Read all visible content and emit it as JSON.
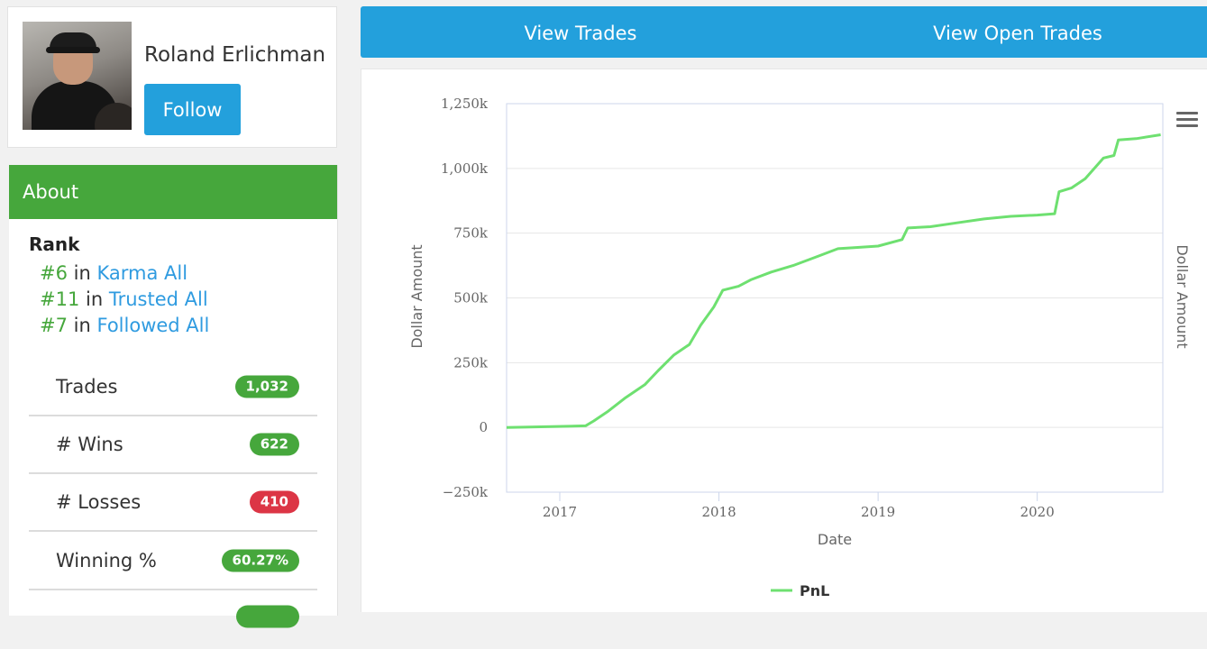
{
  "profile": {
    "name": "Roland Erlichman",
    "follow_label": "Follow"
  },
  "about": {
    "header": "About",
    "rank_title": "Rank",
    "ranks": [
      {
        "num": "#6",
        "in": "in",
        "category": "Karma All"
      },
      {
        "num": "#11",
        "in": "in",
        "category": "Trusted All"
      },
      {
        "num": "#7",
        "in": "in",
        "category": "Followed All"
      }
    ],
    "stats": [
      {
        "label": "Trades",
        "value": "1,032",
        "color": "#46a73c"
      },
      {
        "label": "# Wins",
        "value": "622",
        "color": "#46a73c"
      },
      {
        "label": "# Losses",
        "value": "410",
        "color": "#dc3545"
      },
      {
        "label": "Winning %",
        "value": "60.27%",
        "color": "#46a73c"
      }
    ]
  },
  "nav": {
    "tabs": [
      "View Trades",
      "View Open Trades"
    ]
  },
  "chart_menu_icon": "hamburger-menu-icon",
  "chart_data": {
    "type": "line",
    "xlabel": "Date",
    "ylabel": "Dollar Amount",
    "ylabel_right": "Dollar Amount",
    "ylim": [
      -250000,
      1250000
    ],
    "y_ticks": [
      -250000,
      0,
      250000,
      500000,
      750000,
      1000000,
      1250000
    ],
    "y_tick_labels": [
      "−250k",
      "0",
      "250k",
      "500k",
      "750k",
      "1,000k",
      "1,250k"
    ],
    "xlim": [
      "2016-09-01",
      "2020-10-15"
    ],
    "x_ticks": [
      "2017-01-01",
      "2018-01-01",
      "2019-01-01",
      "2020-01-01"
    ],
    "x_tick_labels": [
      "2017",
      "2018",
      "2019",
      "2020"
    ],
    "grid": true,
    "legend": "bottom-center",
    "series": [
      {
        "name": "PnL",
        "color": "#6ee070",
        "points": [
          [
            "2016-09-01",
            0
          ],
          [
            "2016-12-15",
            3000
          ],
          [
            "2017-03-01",
            6000
          ],
          [
            "2017-03-20",
            25000
          ],
          [
            "2017-04-20",
            60000
          ],
          [
            "2017-06-01",
            115000
          ],
          [
            "2017-07-15",
            165000
          ],
          [
            "2017-08-15",
            220000
          ],
          [
            "2017-09-20",
            280000
          ],
          [
            "2017-10-25",
            320000
          ],
          [
            "2017-11-20",
            395000
          ],
          [
            "2017-12-20",
            465000
          ],
          [
            "2018-01-10",
            530000
          ],
          [
            "2018-02-15",
            545000
          ],
          [
            "2018-03-15",
            570000
          ],
          [
            "2018-05-01",
            600000
          ],
          [
            "2018-06-20",
            625000
          ],
          [
            "2018-08-15",
            660000
          ],
          [
            "2018-10-01",
            690000
          ],
          [
            "2018-11-15",
            695000
          ],
          [
            "2019-01-01",
            700000
          ],
          [
            "2019-02-25",
            725000
          ],
          [
            "2019-03-10",
            770000
          ],
          [
            "2019-05-01",
            775000
          ],
          [
            "2019-07-01",
            790000
          ],
          [
            "2019-09-01",
            805000
          ],
          [
            "2019-11-01",
            815000
          ],
          [
            "2020-01-01",
            820000
          ],
          [
            "2020-02-10",
            825000
          ],
          [
            "2020-02-20",
            910000
          ],
          [
            "2020-03-20",
            925000
          ],
          [
            "2020-04-20",
            960000
          ],
          [
            "2020-06-01",
            1040000
          ],
          [
            "2020-06-25",
            1050000
          ],
          [
            "2020-07-05",
            1110000
          ],
          [
            "2020-08-15",
            1115000
          ],
          [
            "2020-10-10",
            1130000
          ]
        ]
      }
    ]
  }
}
